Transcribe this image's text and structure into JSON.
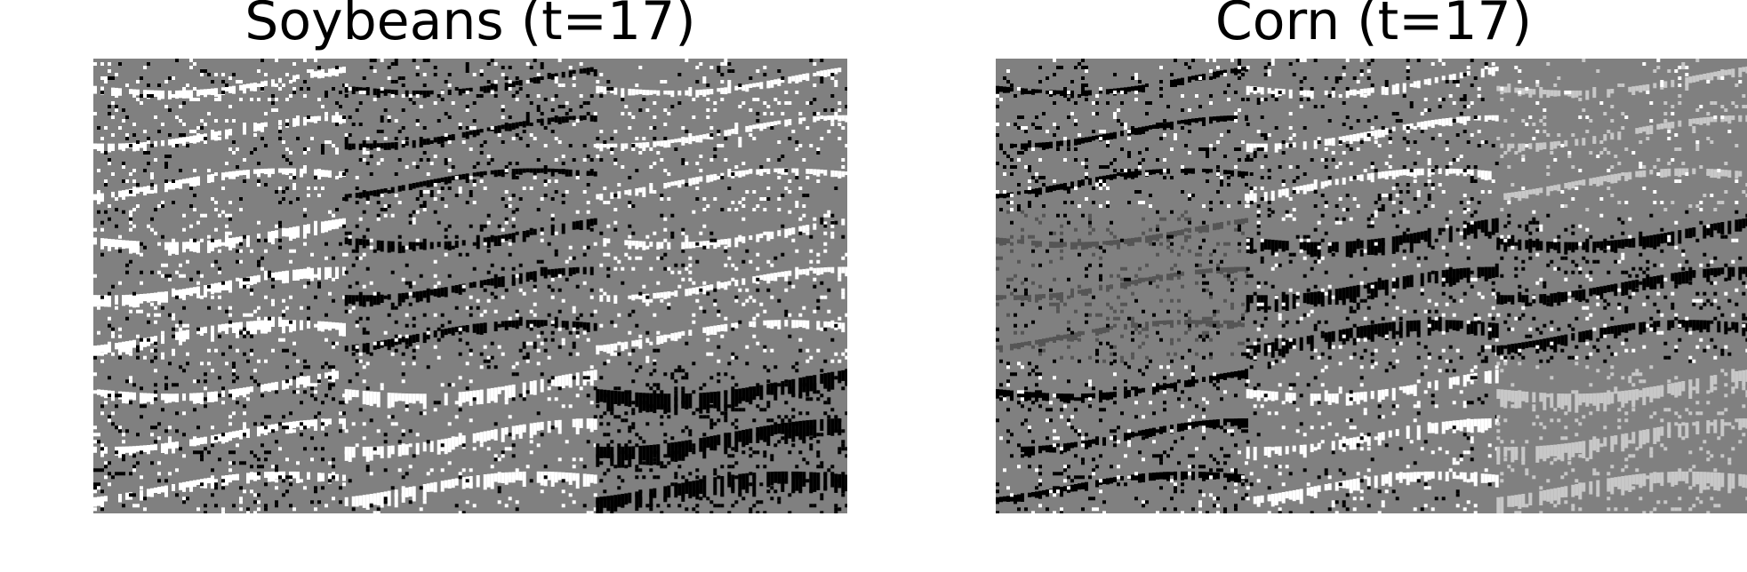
{
  "panels": [
    {
      "title": "Soybeans (t=17)"
    },
    {
      "title": "Corn (t=17)"
    }
  ],
  "colors": {
    "background": "#ffffff",
    "base_gray": "#808080",
    "white": "#ffffff",
    "black": "#000000",
    "light_gray": "#c8c8c8",
    "dark_gray": "#555555"
  }
}
